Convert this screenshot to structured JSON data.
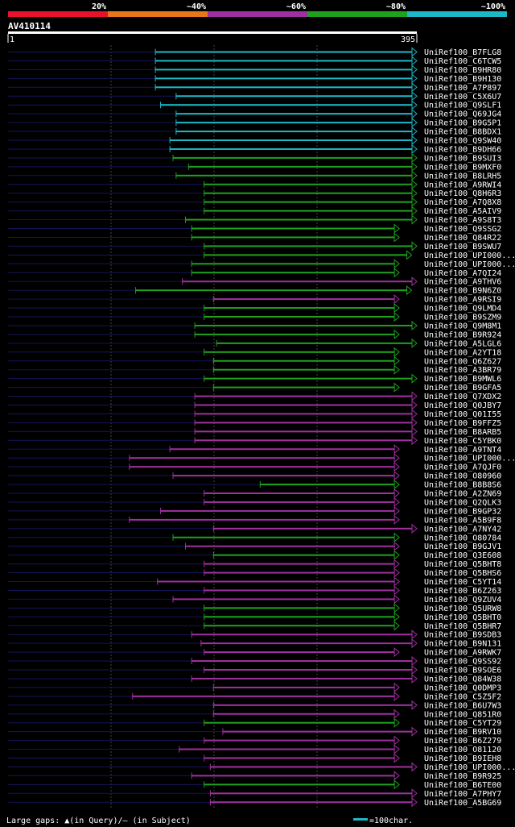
{
  "chart_data": {
    "type": "alignment-overview",
    "query_id": "AV410114",
    "query_start": "1",
    "query_end": "395",
    "legend": {
      "bins": [
        {
          "label": "20%",
          "color": "#e8132b"
        },
        {
          "label": "~40%",
          "color": "#e8761b"
        },
        {
          "label": "~60%",
          "color": "#a030a0"
        },
        {
          "label": "~80%",
          "color": "#1ea21e"
        },
        {
          "label": "~100%",
          "color": "#1cb8c8"
        }
      ]
    },
    "footer": {
      "gaps_text": "Large gaps: ▲(in Query)/– (in Subject)",
      "scale_text": "=100char.",
      "scale_color": "#1cb8c8"
    },
    "hits": [
      {
        "label": "UniRef100_B7FLG8",
        "start": 143,
        "end": 395,
        "color": "cyan"
      },
      {
        "label": "UniRef100_C6TCW5",
        "start": 143,
        "end": 395,
        "color": "cyan"
      },
      {
        "label": "UniRef100_B9HR80",
        "start": 143,
        "end": 395,
        "color": "cyan"
      },
      {
        "label": "UniRef100_B9H130",
        "start": 143,
        "end": 395,
        "color": "cyan"
      },
      {
        "label": "UniRef100_A7P897",
        "start": 143,
        "end": 395,
        "color": "cyan"
      },
      {
        "label": "UniRef100_C5X6U7",
        "start": 163,
        "end": 395,
        "color": "cyan"
      },
      {
        "label": "UniRef100_Q9SLF1",
        "start": 148,
        "end": 395,
        "color": "cyan"
      },
      {
        "label": "UniRef100_Q69JG4",
        "start": 163,
        "end": 395,
        "color": "cyan"
      },
      {
        "label": "UniRef100_B9G5P1",
        "start": 163,
        "end": 395,
        "color": "cyan"
      },
      {
        "label": "UniRef100_B8BDX1",
        "start": 163,
        "end": 395,
        "color": "cyan"
      },
      {
        "label": "UniRef100_Q9SW40",
        "start": 157,
        "end": 395,
        "color": "cyan"
      },
      {
        "label": "UniRef100_B9DH66",
        "start": 157,
        "end": 395,
        "color": "cyan"
      },
      {
        "label": "UniRef100_B9SUI3",
        "start": 160,
        "end": 395,
        "color": "green"
      },
      {
        "label": "UniRef100_B9MXF0",
        "start": 175,
        "end": 395,
        "color": "green"
      },
      {
        "label": "UniRef100_B8LRH5",
        "start": 163,
        "end": 395,
        "color": "green"
      },
      {
        "label": "UniRef100_A9RWI4",
        "start": 190,
        "end": 395,
        "color": "green"
      },
      {
        "label": "UniRef100_Q8H6R3",
        "start": 190,
        "end": 395,
        "color": "green"
      },
      {
        "label": "UniRef100_A7Q8X8",
        "start": 190,
        "end": 395,
        "color": "green"
      },
      {
        "label": "UniRef100_A5AIV9",
        "start": 190,
        "end": 395,
        "color": "green"
      },
      {
        "label": "UniRef100_A9S8T3",
        "start": 172,
        "end": 395,
        "color": "green"
      },
      {
        "label": "UniRef100_Q9SSG2",
        "start": 178,
        "end": 378,
        "color": "green"
      },
      {
        "label": "UniRef100_Q84R22",
        "start": 178,
        "end": 378,
        "color": "green"
      },
      {
        "label": "UniRef100_B9SWU7",
        "start": 190,
        "end": 395,
        "color": "green"
      },
      {
        "label": "UniRef100_UPI000...",
        "start": 190,
        "end": 390,
        "color": "green"
      },
      {
        "label": "UniRef100_UPI000...",
        "start": 178,
        "end": 378,
        "color": "green"
      },
      {
        "label": "UniRef100_A7QI24",
        "start": 178,
        "end": 378,
        "color": "green"
      },
      {
        "label": "UniRef100_A9THV6",
        "start": 169,
        "end": 395,
        "color": "magenta"
      },
      {
        "label": "UniRef100_B9N6Z0",
        "start": 124,
        "end": 390,
        "color": "green"
      },
      {
        "label": "UniRef100_A9RSI9",
        "start": 199,
        "end": 378,
        "color": "magenta"
      },
      {
        "label": "UniRef100_Q9LMD4",
        "start": 190,
        "end": 378,
        "color": "green"
      },
      {
        "label": "UniRef100_B9SZM9",
        "start": 190,
        "end": 378,
        "color": "green"
      },
      {
        "label": "UniRef100_Q9M8M1",
        "start": 181,
        "end": 395,
        "color": "green"
      },
      {
        "label": "UniRef100_B9R924",
        "start": 181,
        "end": 378,
        "color": "green"
      },
      {
        "label": "UniRef100_A5LGL6",
        "start": 202,
        "end": 395,
        "color": "green"
      },
      {
        "label": "UniRef100_A2YT18",
        "start": 190,
        "end": 378,
        "color": "green"
      },
      {
        "label": "UniRef100_Q6Z627",
        "start": 199,
        "end": 378,
        "color": "green"
      },
      {
        "label": "UniRef100_A3BR79",
        "start": 199,
        "end": 378,
        "color": "green"
      },
      {
        "label": "UniRef100_B9MWL6",
        "start": 190,
        "end": 395,
        "color": "green"
      },
      {
        "label": "UniRef100_B9GFA5",
        "start": 199,
        "end": 378,
        "color": "green"
      },
      {
        "label": "UniRef100_Q7XDX2",
        "start": 181,
        "end": 395,
        "color": "magenta"
      },
      {
        "label": "UniRef100_Q0JBY7",
        "start": 181,
        "end": 395,
        "color": "magenta"
      },
      {
        "label": "UniRef100_Q01I55",
        "start": 181,
        "end": 395,
        "color": "magenta"
      },
      {
        "label": "UniRef100_B9FFZ5",
        "start": 181,
        "end": 395,
        "color": "magenta"
      },
      {
        "label": "UniRef100_B8ARB5",
        "start": 181,
        "end": 395,
        "color": "magenta"
      },
      {
        "label": "UniRef100_C5YBK0",
        "start": 181,
        "end": 395,
        "color": "magenta"
      },
      {
        "label": "UniRef100_A9TNT4",
        "start": 157,
        "end": 378,
        "color": "magenta"
      },
      {
        "label": "UniRef100_UPI000...",
        "start": 118,
        "end": 378,
        "color": "magenta"
      },
      {
        "label": "UniRef100_A7QJF0",
        "start": 118,
        "end": 378,
        "color": "magenta"
      },
      {
        "label": "UniRef100_O80960",
        "start": 160,
        "end": 378,
        "color": "magenta"
      },
      {
        "label": "UniRef100_B8B8S6",
        "start": 244,
        "end": 378,
        "color": "green"
      },
      {
        "label": "UniRef100_A2ZN69",
        "start": 190,
        "end": 378,
        "color": "magenta"
      },
      {
        "label": "UniRef100_Q2QLK3",
        "start": 190,
        "end": 378,
        "color": "magenta"
      },
      {
        "label": "UniRef100_B9GP32",
        "start": 148,
        "end": 378,
        "color": "magenta"
      },
      {
        "label": "UniRef100_A5B9F8",
        "start": 118,
        "end": 378,
        "color": "magenta"
      },
      {
        "label": "UniRef100_A7NY42",
        "start": 199,
        "end": 395,
        "color": "magenta"
      },
      {
        "label": "UniRef100_O80784",
        "start": 160,
        "end": 378,
        "color": "green"
      },
      {
        "label": "UniRef100_B9GJV1",
        "start": 172,
        "end": 378,
        "color": "magenta"
      },
      {
        "label": "UniRef100_Q3E608",
        "start": 199,
        "end": 378,
        "color": "green"
      },
      {
        "label": "UniRef100_Q5BHT8",
        "start": 190,
        "end": 378,
        "color": "magenta"
      },
      {
        "label": "UniRef100_Q5BHS6",
        "start": 190,
        "end": 378,
        "color": "magenta"
      },
      {
        "label": "UniRef100_C5YT14",
        "start": 145,
        "end": 378,
        "color": "magenta"
      },
      {
        "label": "UniRef100_B6Z263",
        "start": 190,
        "end": 378,
        "color": "magenta"
      },
      {
        "label": "UniRef100_Q9ZUV4",
        "start": 160,
        "end": 378,
        "color": "magenta"
      },
      {
        "label": "UniRef100_Q5URW8",
        "start": 190,
        "end": 378,
        "color": "green"
      },
      {
        "label": "UniRef100_Q5BHT0",
        "start": 190,
        "end": 378,
        "color": "green"
      },
      {
        "label": "UniRef100_Q5BHR7",
        "start": 190,
        "end": 378,
        "color": "green"
      },
      {
        "label": "UniRef100_B9SDB3",
        "start": 178,
        "end": 395,
        "color": "magenta"
      },
      {
        "label": "UniRef100_B9N131",
        "start": 187,
        "end": 395,
        "color": "magenta"
      },
      {
        "label": "UniRef100_A9RWK7",
        "start": 190,
        "end": 378,
        "color": "magenta"
      },
      {
        "label": "UniRef100_Q9SS92",
        "start": 178,
        "end": 395,
        "color": "magenta"
      },
      {
        "label": "UniRef100_B9SOE6",
        "start": 190,
        "end": 395,
        "color": "magenta"
      },
      {
        "label": "UniRef100_Q84W38",
        "start": 178,
        "end": 395,
        "color": "magenta"
      },
      {
        "label": "UniRef100_Q0DMP3",
        "start": 199,
        "end": 378,
        "color": "magenta"
      },
      {
        "label": "UniRef100_C5Z5F2",
        "start": 121,
        "end": 378,
        "color": "magenta"
      },
      {
        "label": "UniRef100_B6U7W3",
        "start": 199,
        "end": 395,
        "color": "magenta"
      },
      {
        "label": "UniRef100_Q851R0",
        "start": 199,
        "end": 378,
        "color": "magenta"
      },
      {
        "label": "UniRef100_C5YT29",
        "start": 190,
        "end": 378,
        "color": "green"
      },
      {
        "label": "UniRef100_B9RV10",
        "start": 208,
        "end": 395,
        "color": "magenta"
      },
      {
        "label": "UniRef100_B6Z279",
        "start": 190,
        "end": 378,
        "color": "magenta"
      },
      {
        "label": "UniRef100_O81120",
        "start": 166,
        "end": 378,
        "color": "magenta"
      },
      {
        "label": "UniRef100_B9IEH8",
        "start": 190,
        "end": 378,
        "color": "magenta"
      },
      {
        "label": "UniRef100_UPI000...",
        "start": 196,
        "end": 395,
        "color": "magenta"
      },
      {
        "label": "UniRef100_B9R925",
        "start": 178,
        "end": 378,
        "color": "magenta"
      },
      {
        "label": "UniRef100_B6TE00",
        "start": 190,
        "end": 378,
        "color": "green"
      },
      {
        "label": "UniRef100_A7PHY7",
        "start": 196,
        "end": 395,
        "color": "magenta"
      },
      {
        "label": "UniRef100_A5BG69",
        "start": 196,
        "end": 395,
        "color": "magenta"
      }
    ]
  }
}
